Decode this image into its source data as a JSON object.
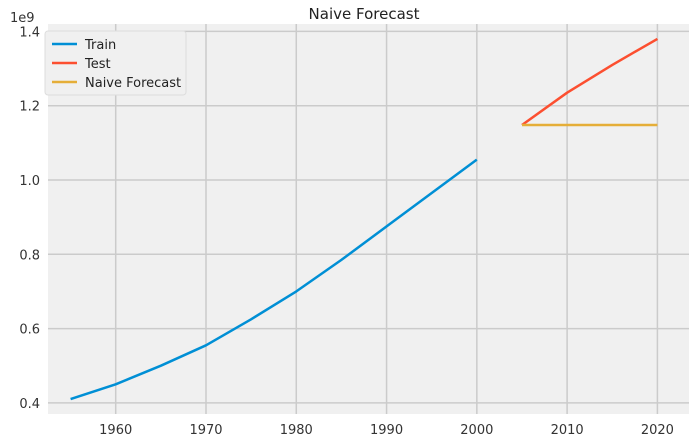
{
  "chart_data": {
    "type": "line",
    "title": "Naive Forecast",
    "xlabel": "",
    "ylabel": "",
    "y_offset_label": "1e9",
    "xlim": [
      1952.5,
      2023.5
    ],
    "ylim": [
      0.37,
      1.42
    ],
    "x_ticks": [
      1960,
      1970,
      1980,
      1990,
      2000,
      2010,
      2020
    ],
    "x_tick_labels": [
      "1960",
      "1970",
      "1980",
      "1990",
      "2000",
      "2010",
      "2020"
    ],
    "y_ticks": [
      0.4,
      0.6,
      0.8,
      1.0,
      1.2,
      1.4
    ],
    "y_tick_labels": [
      "0.4",
      "0.6",
      "0.8",
      "1.0",
      "1.2",
      "1.4"
    ],
    "grid": true,
    "legend_position": "top-left",
    "series": [
      {
        "name": "Train",
        "color": "#008fd5",
        "x": [
          1955,
          1960,
          1965,
          1970,
          1975,
          1980,
          1985,
          1990,
          1995,
          2000
        ],
        "y": [
          0.41,
          0.45,
          0.5,
          0.555,
          0.625,
          0.7,
          0.785,
          0.875,
          0.965,
          1.055
        ]
      },
      {
        "name": "Test",
        "color": "#fc4f30",
        "x": [
          2005,
          2010,
          2015,
          2020
        ],
        "y": [
          1.148,
          1.235,
          1.31,
          1.38
        ]
      },
      {
        "name": "Naive Forecast",
        "color": "#e5ae38",
        "x": [
          2005,
          2010,
          2015,
          2020
        ],
        "y": [
          1.148,
          1.148,
          1.148,
          1.148
        ]
      }
    ]
  }
}
